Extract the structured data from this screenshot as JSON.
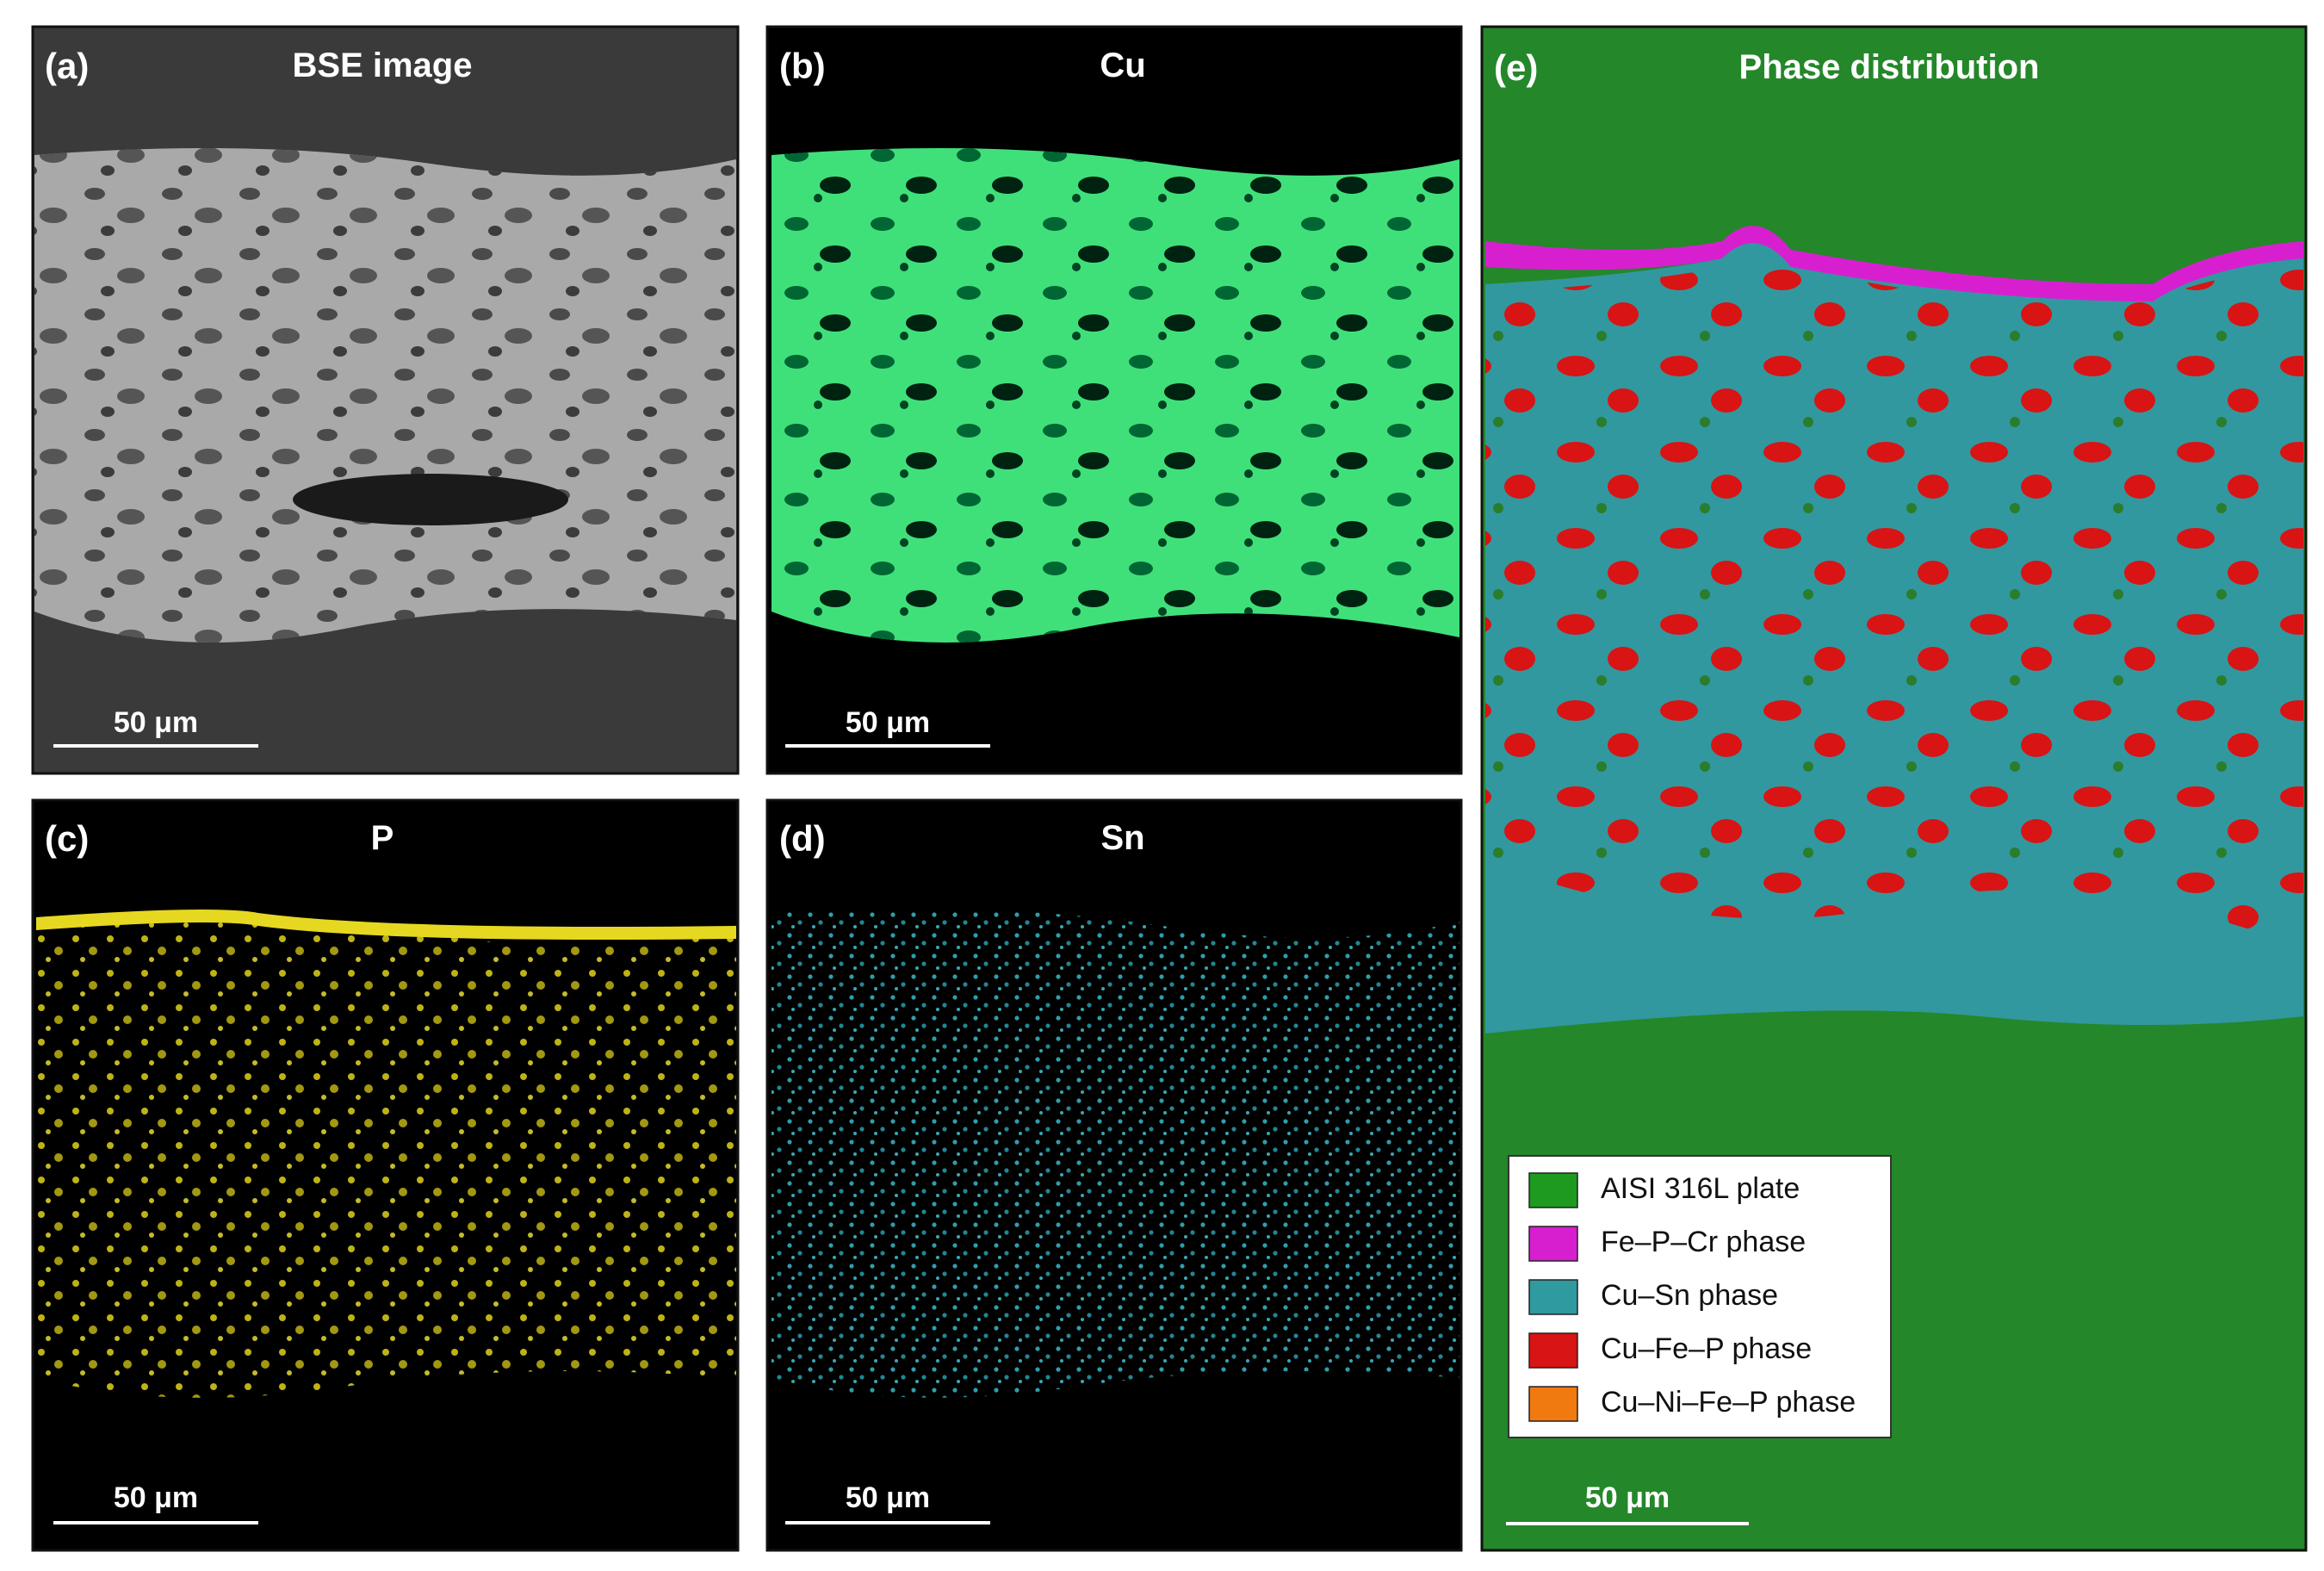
{
  "panels": [
    {
      "label": "(a)",
      "title": "BSE image",
      "scale_bar": "50 μm"
    },
    {
      "label": "(b)",
      "title": "Cu",
      "scale_bar": "50 μm"
    },
    {
      "label": "(c)",
      "title": "P",
      "scale_bar": "50 μm"
    },
    {
      "label": "(d)",
      "title": "Sn",
      "scale_bar": "50 μm"
    },
    {
      "label": "(e)",
      "title": "Phase distribution",
      "scale_bar": "50 μm"
    }
  ],
  "legend": [
    {
      "label": "AISI 316L plate",
      "color": "#1e9a1e"
    },
    {
      "label": "Fe–P–Cr phase",
      "color": "#d81fd0"
    },
    {
      "label": "Cu–Sn phase",
      "color": "#2f9aa0"
    },
    {
      "label": "Cu–Fe–P phase",
      "color": "#d81414"
    },
    {
      "label": "Cu–Ni–Fe–P phase",
      "color": "#f07a10"
    }
  ]
}
